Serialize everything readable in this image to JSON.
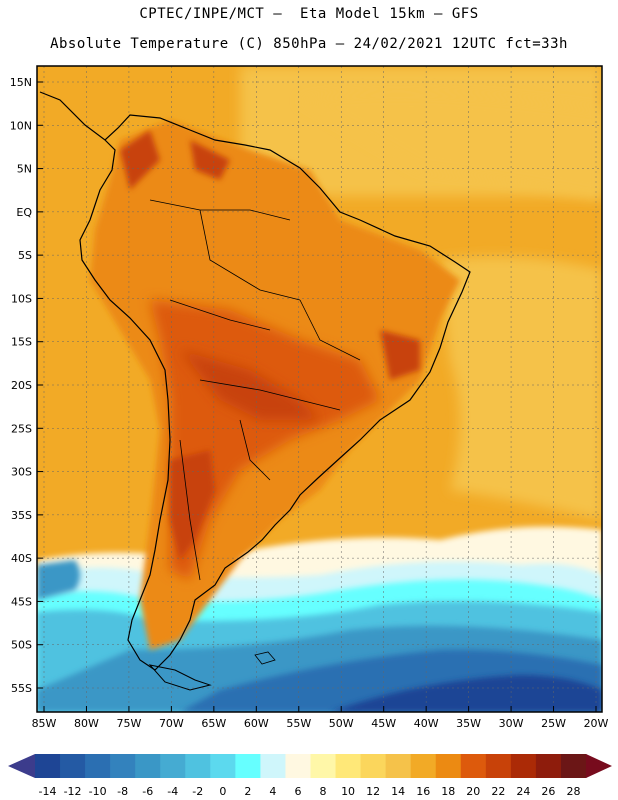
{
  "header": {
    "line1": "CPTEC/INPE/MCT –  Eta Model 15km – GFS",
    "line2": "Absolute Temperature (C) 850hPa – 24/02/2021 12UTC fct=33h"
  },
  "map": {
    "lat_labels": [
      "15N",
      "10N",
      "5N",
      "EQ",
      "5S",
      "10S",
      "15S",
      "20S",
      "25S",
      "30S",
      "35S",
      "40S",
      "45S",
      "50S",
      "55S"
    ],
    "lon_labels": [
      "85W",
      "80W",
      "75W",
      "70W",
      "65W",
      "60W",
      "55W",
      "50W",
      "45W",
      "40W",
      "35W",
      "30W",
      "25W",
      "20W"
    ]
  },
  "colorbar": {
    "ticks": [
      "-14",
      "-12",
      "-10",
      "-8",
      "-6",
      "-4",
      "-2",
      "0",
      "2",
      "4",
      "6",
      "8",
      "10",
      "12",
      "14",
      "16",
      "18",
      "20",
      "22",
      "24",
      "26",
      "28"
    ],
    "colors": [
      "#1e4595",
      "#245aa4",
      "#2b6fb2",
      "#3382bd",
      "#3a97c6",
      "#45abd2",
      "#4fc2e0",
      "#5cd9ee",
      "#66ffff",
      "#cff6fb",
      "#fff8e1",
      "#fff7a8",
      "#ffe878",
      "#fbd65c",
      "#f5c24a",
      "#f2aa26",
      "#ec8a12",
      "#dd5a0c",
      "#c84209",
      "#ab2a06",
      "#8e1c0c",
      "#6b1616"
    ],
    "low_arrow_color": "#3c3c8c",
    "high_arrow_color": "#770b1d"
  }
}
